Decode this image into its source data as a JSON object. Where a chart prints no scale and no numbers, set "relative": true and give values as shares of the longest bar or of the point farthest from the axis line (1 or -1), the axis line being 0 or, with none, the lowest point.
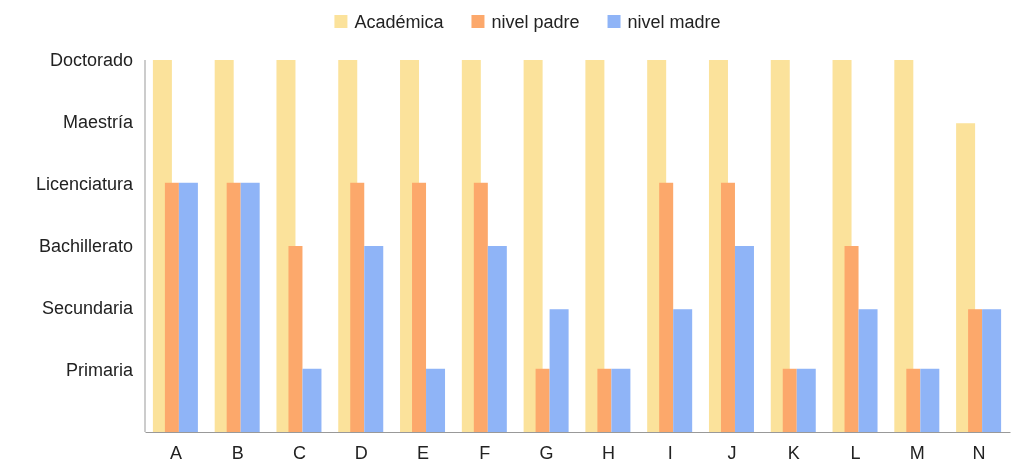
{
  "chart_data": {
    "type": "bar",
    "relative": true,
    "categories": [
      "A",
      "B",
      "C",
      "D",
      "E",
      "F",
      "G",
      "H",
      "I",
      "J",
      "K",
      "L",
      "M",
      "N"
    ],
    "series": [
      {
        "name": "Académica",
        "color": "#fbe29b",
        "values": [
          1,
          1,
          1,
          1,
          1,
          1,
          1,
          1,
          1,
          1,
          1,
          1,
          1,
          0.83
        ]
      },
      {
        "name": "nivel padre",
        "color": "#fca86b",
        "values": [
          0.67,
          0.67,
          0.5,
          0.67,
          0.67,
          0.67,
          0.17,
          0.17,
          0.67,
          0.67,
          0.17,
          0.5,
          0.17,
          0.33
        ]
      },
      {
        "name": "nivel madre",
        "color": "#8fb4f7",
        "values": [
          0.67,
          0.67,
          0.17,
          0.5,
          0.17,
          0.5,
          0.33,
          0.17,
          0.33,
          0.5,
          0.17,
          0.33,
          0.17,
          0.33
        ]
      }
    ],
    "annotations": [
      "Primaria",
      "Secundaria",
      "Bachillerato",
      "Licenciatura",
      "Maestría",
      "Doctorado"
    ],
    "legend": "top",
    "grid": false
  }
}
